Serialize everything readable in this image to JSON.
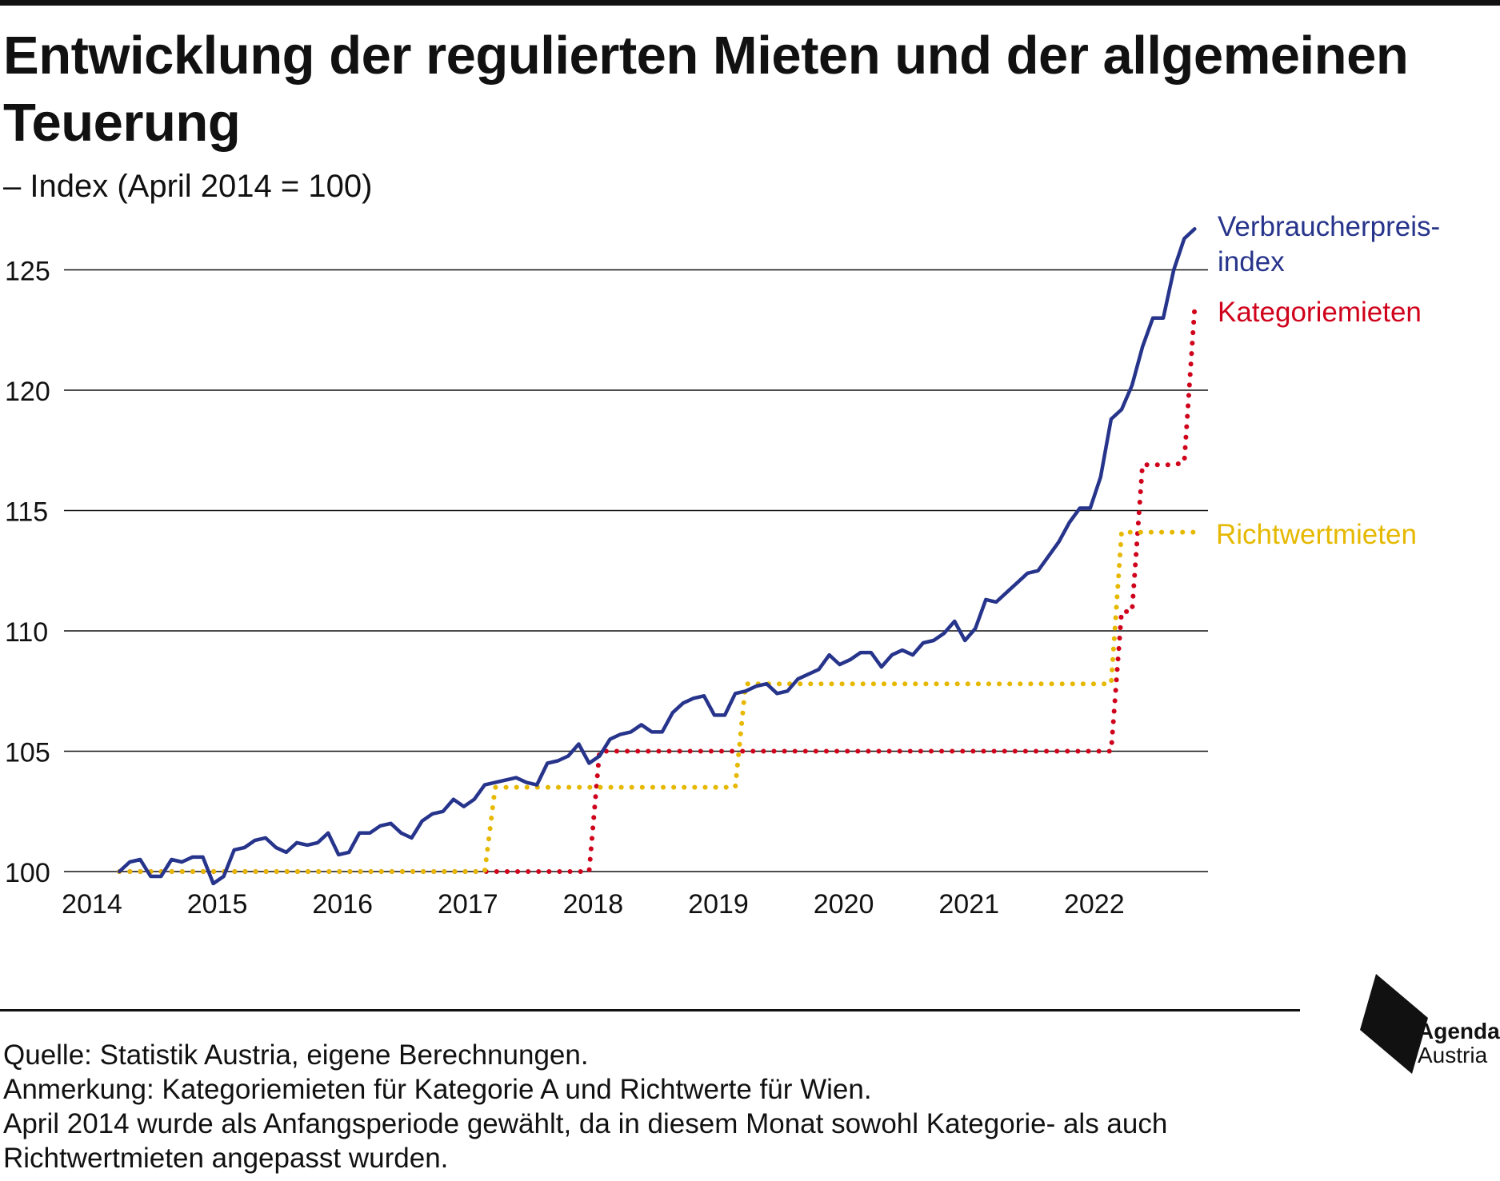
{
  "header": {
    "title": "Entwicklung der regulierten Mieten und der allgemeinen Teuerung",
    "subtitle": "– Index (April 2014 = 100)"
  },
  "footer": {
    "source": "Quelle: Statistik Austria, eigene Berechnungen.",
    "note": "Anmerkung: Kategoriemieten für Kategorie A und Richtwerte für Wien.",
    "remark_line1": "April 2014 wurde als Anfangsperiode gewählt, da in diesem Monat sowohl Kategorie- als auch",
    "remark_line2": "Richtwertmieten angepasst wurden."
  },
  "logo": {
    "line1": "Agenda",
    "line2": "Austria"
  },
  "colors": {
    "vpi": "#27348b",
    "kategorie": "#d0021b",
    "richtwert": "#e6b800",
    "grid": "#111111"
  },
  "chart_data": {
    "type": "line",
    "title": "Entwicklung der regulierten Mieten und der allgemeinen Teuerung",
    "subtitle": "– Index (April 2014 = 100)",
    "x_unit": "date (year-month)",
    "xlim": [
      "2014-01",
      "2023-02"
    ],
    "ylim": [
      100,
      127
    ],
    "yticks": [
      100,
      105,
      110,
      115,
      120,
      125
    ],
    "xticks": [
      "2014",
      "2015",
      "2016",
      "2017",
      "2018",
      "2019",
      "2020",
      "2021",
      "2022"
    ],
    "grid": "horizontal",
    "legend": "direct labels at right end of lines",
    "series": [
      {
        "name": "Verbraucherpreis-index",
        "label_lines": [
          "Verbraucherpreis-",
          "index"
        ],
        "style": "solid",
        "points": [
          [
            "2014-04",
            100.0
          ],
          [
            "2014-05",
            100.4
          ],
          [
            "2014-06",
            100.5
          ],
          [
            "2014-07",
            99.8
          ],
          [
            "2014-08",
            99.8
          ],
          [
            "2014-09",
            100.5
          ],
          [
            "2014-10",
            100.4
          ],
          [
            "2014-11",
            100.6
          ],
          [
            "2014-12",
            100.6
          ],
          [
            "2015-01",
            99.5
          ],
          [
            "2015-02",
            99.8
          ],
          [
            "2015-03",
            100.9
          ],
          [
            "2015-04",
            101.0
          ],
          [
            "2015-05",
            101.3
          ],
          [
            "2015-06",
            101.4
          ],
          [
            "2015-07",
            101.0
          ],
          [
            "2015-08",
            100.8
          ],
          [
            "2015-09",
            101.2
          ],
          [
            "2015-10",
            101.1
          ],
          [
            "2015-11",
            101.2
          ],
          [
            "2015-12",
            101.6
          ],
          [
            "2016-01",
            100.7
          ],
          [
            "2016-02",
            100.8
          ],
          [
            "2016-03",
            101.6
          ],
          [
            "2016-04",
            101.6
          ],
          [
            "2016-05",
            101.9
          ],
          [
            "2016-06",
            102.0
          ],
          [
            "2016-07",
            101.6
          ],
          [
            "2016-08",
            101.4
          ],
          [
            "2016-09",
            102.1
          ],
          [
            "2016-10",
            102.4
          ],
          [
            "2016-11",
            102.5
          ],
          [
            "2016-12",
            103.0
          ],
          [
            "2017-01",
            102.7
          ],
          [
            "2017-02",
            103.0
          ],
          [
            "2017-03",
            103.6
          ],
          [
            "2017-04",
            103.7
          ],
          [
            "2017-05",
            103.8
          ],
          [
            "2017-06",
            103.9
          ],
          [
            "2017-07",
            103.7
          ],
          [
            "2017-08",
            103.6
          ],
          [
            "2017-09",
            104.5
          ],
          [
            "2017-10",
            104.6
          ],
          [
            "2017-11",
            104.8
          ],
          [
            "2017-12",
            105.3
          ],
          [
            "2018-01",
            104.5
          ],
          [
            "2018-02",
            104.8
          ],
          [
            "2018-03",
            105.5
          ],
          [
            "2018-04",
            105.7
          ],
          [
            "2018-05",
            105.8
          ],
          [
            "2018-06",
            106.1
          ],
          [
            "2018-07",
            105.8
          ],
          [
            "2018-08",
            105.8
          ],
          [
            "2018-09",
            106.6
          ],
          [
            "2018-10",
            107.0
          ],
          [
            "2018-11",
            107.2
          ],
          [
            "2018-12",
            107.3
          ],
          [
            "2019-01",
            106.5
          ],
          [
            "2019-02",
            106.5
          ],
          [
            "2019-03",
            107.4
          ],
          [
            "2019-04",
            107.5
          ],
          [
            "2019-05",
            107.7
          ],
          [
            "2019-06",
            107.8
          ],
          [
            "2019-07",
            107.4
          ],
          [
            "2019-08",
            107.5
          ],
          [
            "2019-09",
            108.0
          ],
          [
            "2019-10",
            108.2
          ],
          [
            "2019-11",
            108.4
          ],
          [
            "2019-12",
            109.0
          ],
          [
            "2020-01",
            108.6
          ],
          [
            "2020-02",
            108.8
          ],
          [
            "2020-03",
            109.1
          ],
          [
            "2020-04",
            109.1
          ],
          [
            "2020-05",
            108.5
          ],
          [
            "2020-06",
            109.0
          ],
          [
            "2020-07",
            109.2
          ],
          [
            "2020-08",
            109.0
          ],
          [
            "2020-09",
            109.5
          ],
          [
            "2020-10",
            109.6
          ],
          [
            "2020-11",
            109.9
          ],
          [
            "2020-12",
            110.4
          ],
          [
            "2021-01",
            109.6
          ],
          [
            "2021-02",
            110.1
          ],
          [
            "2021-03",
            111.3
          ],
          [
            "2021-04",
            111.2
          ],
          [
            "2021-05",
            111.6
          ],
          [
            "2021-06",
            112.0
          ],
          [
            "2021-07",
            112.4
          ],
          [
            "2021-08",
            112.5
          ],
          [
            "2021-09",
            113.1
          ],
          [
            "2021-10",
            113.7
          ],
          [
            "2021-11",
            114.5
          ],
          [
            "2021-12",
            115.1
          ],
          [
            "2022-01",
            115.1
          ],
          [
            "2022-02",
            116.4
          ],
          [
            "2022-03",
            118.8
          ],
          [
            "2022-04",
            119.2
          ],
          [
            "2022-05",
            120.2
          ],
          [
            "2022-06",
            121.8
          ],
          [
            "2022-07",
            123.0
          ],
          [
            "2022-08",
            123.0
          ],
          [
            "2022-09",
            125.0
          ],
          [
            "2022-10",
            126.3
          ],
          [
            "2022-11",
            126.7
          ]
        ]
      },
      {
        "name": "Kategoriemieten",
        "style": "dotted",
        "points": [
          [
            "2014-04",
            100.0
          ],
          [
            "2018-01",
            100.0
          ],
          [
            "2018-02",
            105.0
          ],
          [
            "2022-03",
            105.0
          ],
          [
            "2022-04",
            110.8
          ],
          [
            "2022-05",
            110.8
          ],
          [
            "2022-06",
            116.9
          ],
          [
            "2022-09",
            116.9
          ],
          [
            "2022-10",
            117.0
          ],
          [
            "2022-11",
            123.4
          ]
        ]
      },
      {
        "name": "Richtwertmieten",
        "style": "dotted",
        "points": [
          [
            "2014-04",
            100.0
          ],
          [
            "2017-03",
            100.0
          ],
          [
            "2017-04",
            103.5
          ],
          [
            "2019-03",
            103.5
          ],
          [
            "2019-04",
            107.8
          ],
          [
            "2022-03",
            107.8
          ],
          [
            "2022-04",
            114.1
          ],
          [
            "2022-11",
            114.1
          ]
        ]
      }
    ]
  }
}
